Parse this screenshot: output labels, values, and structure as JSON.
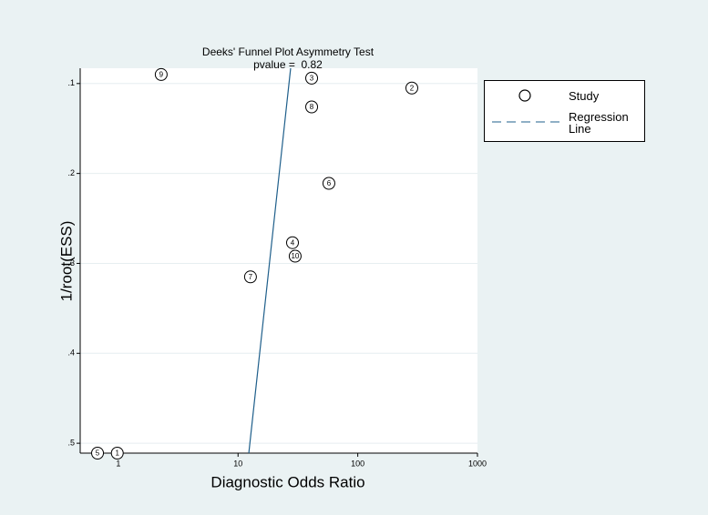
{
  "chart_data": {
    "type": "scatter",
    "title": "Deeks' Funnel Plot Asymmetry Test",
    "subtitle": "pvalue =  0.82",
    "x_label": "Diagnostic Odds Ratio",
    "y_label": "1/root(ESS)",
    "x_log": true,
    "y_reversed": true,
    "grid": true,
    "xlim": [
      0.48,
      1000
    ],
    "xticks": [
      1,
      10,
      100,
      1000
    ],
    "ylim": [
      0.083,
      0.511
    ],
    "yticks": [
      {
        "value": 0.1,
        "label": ".1"
      },
      {
        "value": 0.2,
        "label": ".2"
      },
      {
        "value": 0.3,
        "label": ".3"
      },
      {
        "value": 0.4,
        "label": ".4"
      },
      {
        "value": 0.5,
        "label": ".5"
      }
    ],
    "series": [
      {
        "name": "Study",
        "color": "#000000",
        "labels": [
          "9",
          "3",
          "2",
          "8",
          "6",
          "4",
          "10",
          "7",
          "5",
          "1"
        ],
        "x": [
          2.28,
          41.2,
          283,
          41.2,
          57.4,
          28.5,
          30.0,
          12.7,
          0.67,
          0.98
        ],
        "values": [
          0.09,
          0.094,
          0.105,
          0.126,
          0.211,
          0.277,
          0.292,
          0.315,
          0.511,
          0.511
        ]
      }
    ],
    "regression": {
      "name": "Regression Line",
      "color": "#1f5f8b",
      "x": [
        12.3,
        27.5
      ],
      "y": [
        0.511,
        0.083
      ]
    },
    "legend": "right"
  }
}
